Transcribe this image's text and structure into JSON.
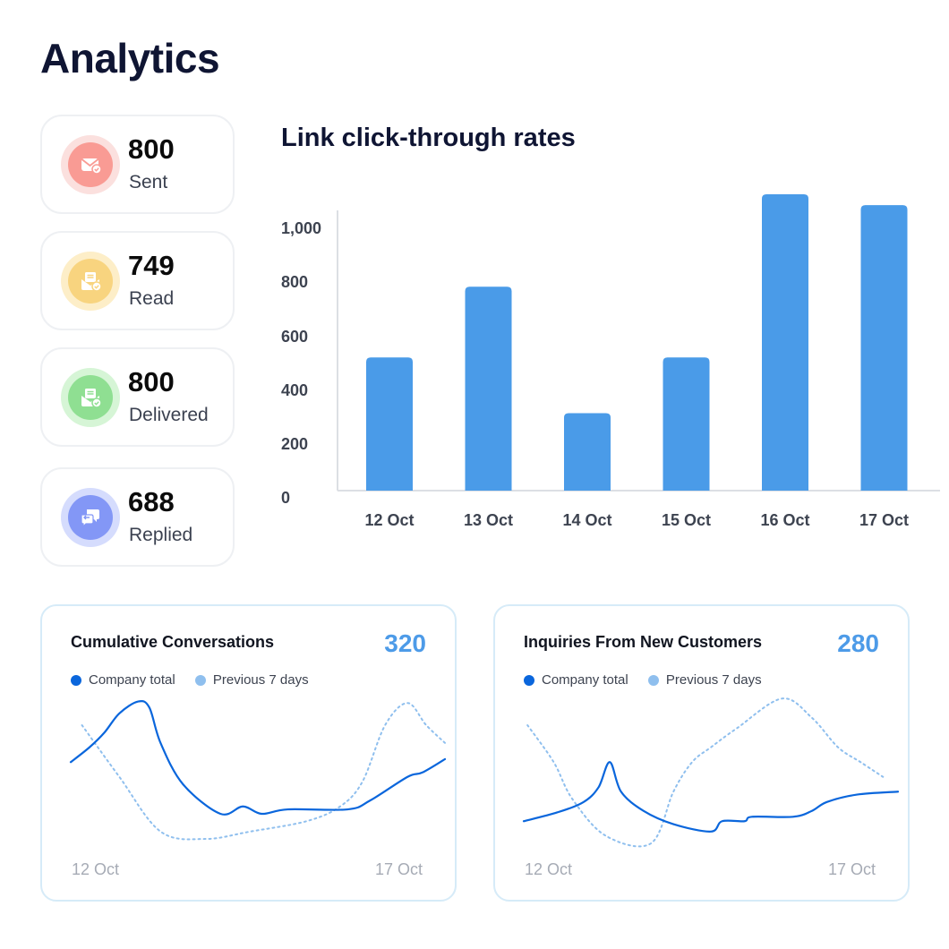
{
  "page": {
    "title": "Analytics"
  },
  "stats": [
    {
      "value": "800",
      "label": "Sent",
      "icon": "envelope-check-icon",
      "ring": "#fbe0de",
      "core": "#f99b94"
    },
    {
      "value": "749",
      "label": "Read",
      "icon": "open-envelope-check-icon",
      "ring": "#fdeec8",
      "core": "#f8d47f"
    },
    {
      "value": "800",
      "label": "Delivered",
      "icon": "open-envelope-check-icon",
      "ring": "#d6f5d6",
      "core": "#8fdf92"
    },
    {
      "value": "688",
      "label": "Replied",
      "icon": "chat-bubbles-icon",
      "ring": "#d5dcfd",
      "core": "#8397f6"
    }
  ],
  "bar_chart": {
    "title": "Link click-through rates"
  },
  "chart_data": [
    {
      "type": "bar",
      "title": "Link click-through rates",
      "categories": [
        "12 Oct",
        "13 Oct",
        "14 Oct",
        "15 Oct",
        "16 Oct",
        "17 Oct"
      ],
      "values": [
        490,
        750,
        285,
        490,
        1090,
        1050
      ],
      "yticks": [
        0,
        200,
        400,
        600,
        800,
        1000
      ],
      "ytick_labels": [
        "0",
        "200",
        "400",
        "600",
        "800",
        "1,000"
      ],
      "ylim": [
        0,
        1090
      ],
      "color": "#4a9be8",
      "grid": false
    },
    {
      "type": "line",
      "title": "Cumulative Conversations",
      "x_labels": [
        "12 Oct",
        "17 Oct"
      ],
      "series": [
        {
          "name": "Company total",
          "color": "#0a66dc",
          "style": "solid",
          "values": [
            [
              0,
              55
            ],
            [
              5,
              65
            ],
            [
              9,
              75
            ],
            [
              13,
              88
            ],
            [
              18,
              96
            ],
            [
              21,
              92
            ],
            [
              24,
              68
            ],
            [
              30,
              40
            ],
            [
              40,
              20
            ],
            [
              46,
              25
            ],
            [
              51,
              20
            ],
            [
              58,
              23
            ],
            [
              74,
              23
            ],
            [
              80,
              29
            ],
            [
              90,
              45
            ],
            [
              94,
              48
            ],
            [
              100,
              57
            ]
          ]
        },
        {
          "name": "Previous 7 days",
          "color": "#8fbfee",
          "style": "dotted",
          "values": [
            [
              3,
              80
            ],
            [
              13,
              45
            ],
            [
              24,
              8
            ],
            [
              36,
              3
            ],
            [
              48,
              8
            ],
            [
              63,
              15
            ],
            [
              72,
              25
            ],
            [
              78,
              42
            ],
            [
              84,
              80
            ],
            [
              90,
              95
            ],
            [
              95,
              80
            ],
            [
              100,
              68
            ]
          ]
        }
      ]
    },
    {
      "type": "line",
      "title": "Inquiries From New Customers",
      "x_labels": [
        "12 Oct",
        "17 Oct"
      ],
      "series": [
        {
          "name": "Company total",
          "color": "#0a66dc",
          "style": "solid",
          "values": [
            [
              0,
              15
            ],
            [
              9,
              21
            ],
            [
              16,
              28
            ],
            [
              20,
              38
            ],
            [
              23,
              55
            ],
            [
              26,
              35
            ],
            [
              32,
              22
            ],
            [
              40,
              13
            ],
            [
              50,
              8
            ],
            [
              53,
              15
            ],
            [
              59,
              15
            ],
            [
              61,
              18
            ],
            [
              72,
              18
            ],
            [
              77,
              22
            ],
            [
              81,
              28
            ],
            [
              89,
              33
            ],
            [
              100,
              35
            ]
          ]
        },
        {
          "name": "Previous 7 days",
          "color": "#8fbfee",
          "style": "dotted",
          "values": [
            [
              1,
              80
            ],
            [
              8,
              55
            ],
            [
              13,
              30
            ],
            [
              22,
              5
            ],
            [
              34,
              0
            ],
            [
              40,
              35
            ],
            [
              45,
              55
            ],
            [
              50,
              65
            ],
            [
              57,
              78
            ],
            [
              69,
              98
            ],
            [
              77,
              85
            ],
            [
              84,
              65
            ],
            [
              90,
              55
            ],
            [
              96,
              45
            ]
          ]
        }
      ]
    }
  ],
  "cards": [
    {
      "title": "Cumulative Conversations",
      "value": "320",
      "legend": [
        "Company total",
        "Previous 7 days"
      ],
      "x_start": "12 Oct",
      "x_end": "17 Oct"
    },
    {
      "title": "Inquiries From New Customers",
      "value": "280",
      "legend": [
        "Company total",
        "Previous 7 days"
      ],
      "x_start": "12 Oct",
      "x_end": "17 Oct"
    }
  ],
  "colors": {
    "accent": "#4a9be8",
    "series_primary": "#0a66dc",
    "series_secondary": "#8fbfee"
  }
}
